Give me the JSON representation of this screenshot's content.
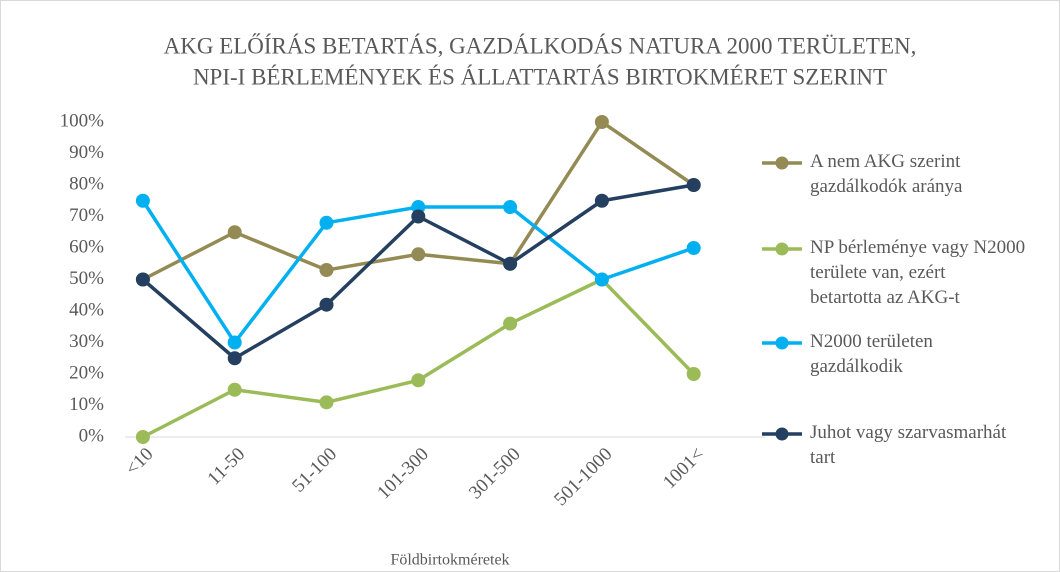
{
  "chart_data": {
    "type": "line",
    "title": [
      "AKG ELŐÍRÁS BETARTÁS, GAZDÁLKODÁS NATURA 2000 TERÜLETEN,",
      "NPI-I BÉRLEMÉNYEK ÉS ÁLLATTARTÁS BIRTOKMÉRET SZERINT"
    ],
    "x_label": "Földbirtokméretek",
    "categories": [
      "<10",
      "11-50",
      "51-100",
      "101-300",
      "301-500",
      "501-1000",
      "1001<"
    ],
    "series": [
      {
        "name": "A nem AKG szerint gazdálkodók aránya",
        "color": "#948a54",
        "values": [
          50,
          65,
          53,
          58,
          55,
          100,
          80
        ]
      },
      {
        "name": "NP bérleménye vagy N2000 területe van, ezért betartotta az AKG-t",
        "color": "#9bbb59",
        "values": [
          0,
          15,
          11,
          18,
          36,
          50,
          20
        ]
      },
      {
        "name": "N2000 területen gazdálkodik",
        "color": "#00b0f0",
        "values": [
          75,
          30,
          68,
          73,
          73,
          50,
          60
        ]
      },
      {
        "name": "Juhot vagy szarvasmarhát tart",
        "color": "#243f60",
        "values": [
          50,
          25,
          42,
          70,
          55,
          75,
          80
        ]
      }
    ],
    "ylim": [
      0,
      100
    ],
    "yticks": [
      {
        "value": 0,
        "label": "0%"
      },
      {
        "value": 10,
        "label": "10%"
      },
      {
        "value": 20,
        "label": "20%"
      },
      {
        "value": 30,
        "label": "30%"
      },
      {
        "value": 40,
        "label": "40%"
      },
      {
        "value": 50,
        "label": "50%"
      },
      {
        "value": 60,
        "label": "60%"
      },
      {
        "value": 70,
        "label": "70%"
      },
      {
        "value": 80,
        "label": "80%"
      },
      {
        "value": 90,
        "label": "90%"
      },
      {
        "value": 100,
        "label": "100%"
      }
    ],
    "grid": false,
    "legend": "right"
  }
}
